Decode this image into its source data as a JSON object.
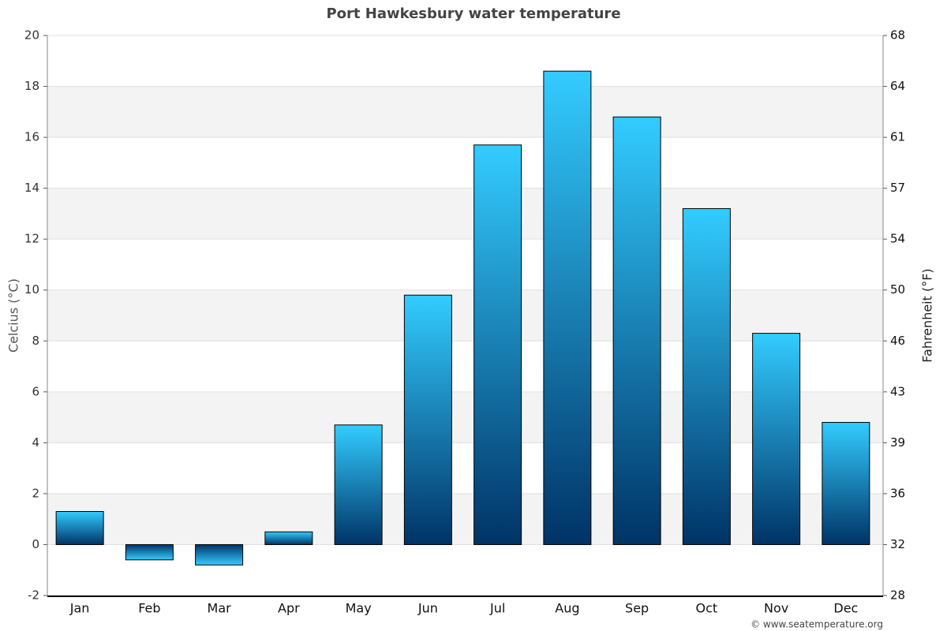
{
  "chart_data": {
    "type": "bar",
    "title": "Port Hawkesbury water temperature",
    "y_label": "Celcius (°C)",
    "y2_label": "Fahrenheit (°F)",
    "credit": "© www.seatemperature.org",
    "categories": [
      "Jan",
      "Feb",
      "Mar",
      "Apr",
      "May",
      "Jun",
      "Jul",
      "Aug",
      "Sep",
      "Oct",
      "Nov",
      "Dec"
    ],
    "values": [
      1.3,
      -0.6,
      -0.8,
      0.5,
      4.7,
      9.8,
      15.7,
      18.6,
      16.8,
      13.2,
      8.3,
      4.8
    ],
    "color": [
      "#33ccff",
      "#003366"
    ],
    "ylim": [
      -2,
      20
    ],
    "yticks": [
      -2,
      0,
      2,
      4,
      6,
      8,
      10,
      12,
      14,
      16,
      18,
      20
    ],
    "y2lim": [
      28.4,
      68
    ],
    "y2ticks": [
      {
        "value": 28.4,
        "label": "28"
      },
      32,
      {
        "value": 35.6,
        "label": "36"
      },
      {
        "value": 39.2,
        "label": "39"
      },
      {
        "value": 42.8,
        "label": "43"
      },
      {
        "value": 46.4,
        "label": "46"
      },
      50,
      {
        "value": 53.6,
        "label": "54"
      },
      {
        "value": 57.2,
        "label": "57"
      },
      {
        "value": 60.8,
        "label": "61"
      },
      {
        "value": 64.4,
        "label": "64"
      },
      68
    ],
    "grid": true
  }
}
